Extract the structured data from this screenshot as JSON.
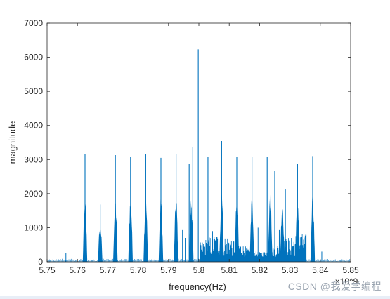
{
  "chart_data": {
    "type": "line",
    "title": "",
    "xlabel": "frequency(Hz)",
    "ylabel": "magnitude",
    "xlim": [
      5.75,
      5.85
    ],
    "ylim": [
      0,
      7000
    ],
    "x_ticks": [
      5.75,
      5.76,
      5.77,
      5.78,
      5.79,
      5.8,
      5.81,
      5.82,
      5.83,
      5.84,
      5.85
    ],
    "x_tick_labels": [
      "5.75",
      "5.76",
      "5.77",
      "5.78",
      "5.79",
      "5.8",
      "5.81",
      "5.82",
      "5.83",
      "5.84",
      "5.85"
    ],
    "y_ticks": [
      0,
      1000,
      2000,
      3000,
      4000,
      5000,
      6000,
      7000
    ],
    "y_tick_labels": [
      "0",
      "1000",
      "2000",
      "3000",
      "4000",
      "5000",
      "6000",
      "7000"
    ],
    "x_exponent_label": "×10^9",
    "grid": false,
    "series_color": "#0072bd",
    "series": [
      {
        "x": [
          5.7625,
          5.7675,
          5.7725,
          5.7775,
          5.7825,
          5.7875,
          5.7925,
          5.7968,
          5.798,
          5.7998,
          5.803,
          5.8075,
          5.8125,
          5.8175,
          5.8225,
          5.825,
          5.8285,
          5.8325,
          5.8375
        ],
        "values": [
          3150,
          1680,
          3130,
          3080,
          3150,
          3050,
          3150,
          2870,
          3370,
          6230,
          3080,
          3540,
          3080,
          3070,
          3080,
          2660,
          2140,
          2870,
          3100
        ]
      }
    ],
    "cluster_envelope": [
      {
        "x": 5.7625,
        "value": 1750
      },
      {
        "x": 5.7675,
        "value": 1100
      },
      {
        "x": 5.7725,
        "value": 1750
      },
      {
        "x": 5.7775,
        "value": 1850
      },
      {
        "x": 5.7825,
        "value": 1820
      },
      {
        "x": 5.7875,
        "value": 1780
      },
      {
        "x": 5.7925,
        "value": 1800
      },
      {
        "x": 5.7975,
        "value": 1800
      },
      {
        "x": 5.8075,
        "value": 2000
      },
      {
        "x": 5.8125,
        "value": 1900
      },
      {
        "x": 5.8175,
        "value": 1900
      },
      {
        "x": 5.8235,
        "value": 1900
      },
      {
        "x": 5.8275,
        "value": 1600
      },
      {
        "x": 5.8325,
        "value": 1800
      },
      {
        "x": 5.8375,
        "value": 1800
      }
    ]
  },
  "watermark": "CSDN @我爱学编程"
}
